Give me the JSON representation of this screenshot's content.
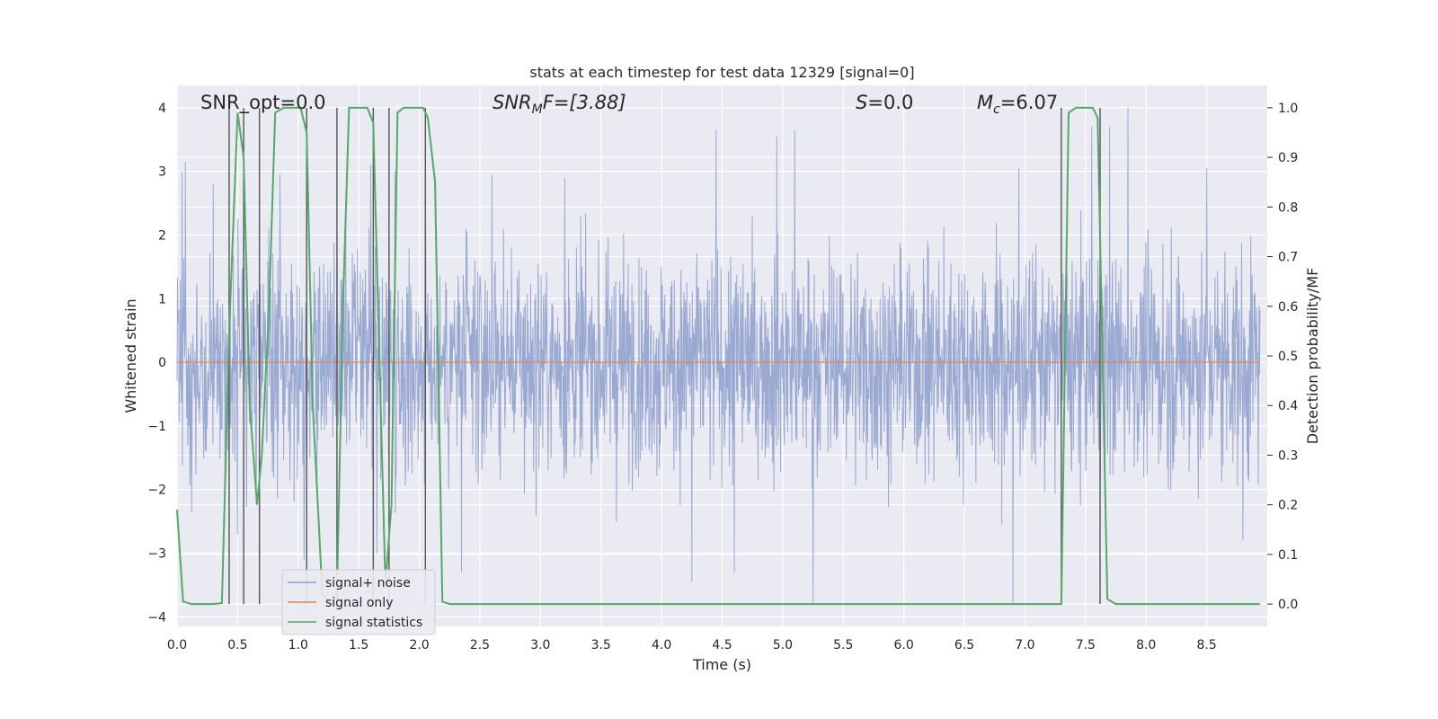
{
  "chart_data": {
    "type": "line",
    "title": "stats at each timestep for test data 12329 [signal=0]",
    "xlabel": "Time (s)",
    "ylabel": "Whitened strain",
    "y2label": "Detection probability/MF",
    "xlim": [
      0,
      9.0
    ],
    "ylim": [
      -4.15,
      4.35
    ],
    "y2lim": [
      -0.045,
      1.045
    ],
    "xticks": [
      0.0,
      0.5,
      1.0,
      1.5,
      2.0,
      2.5,
      3.0,
      3.5,
      4.0,
      4.5,
      5.0,
      5.5,
      6.0,
      6.5,
      7.0,
      7.5,
      8.0,
      8.5
    ],
    "xtick_labels": [
      "0.0",
      "0.5",
      "1.0",
      "1.5",
      "2.0",
      "2.5",
      "3.0",
      "3.5",
      "4.0",
      "4.5",
      "5.0",
      "5.5",
      "6.0",
      "6.5",
      "7.0",
      "7.5",
      "8.0",
      "8.5"
    ],
    "yticks": [
      -4,
      -3,
      -2,
      -1,
      0,
      1,
      2,
      3,
      4
    ],
    "ytick_labels": [
      "−4",
      "−3",
      "−2",
      "−1",
      "0",
      "1",
      "2",
      "3",
      "4"
    ],
    "y2ticks": [
      0.0,
      0.1,
      0.2,
      0.3,
      0.4,
      0.5,
      0.6,
      0.7,
      0.8,
      0.9,
      1.0
    ],
    "y2tick_labels": [
      "0.0",
      "0.1",
      "0.2",
      "0.3",
      "0.4",
      "0.5",
      "0.6",
      "0.7",
      "0.8",
      "0.9",
      "1.0"
    ],
    "grid": true,
    "legend_position": "lower-left",
    "annotations": {
      "snr_opt": "SNR_opt=0.0",
      "snr_mf_main": "SNR",
      "snr_mf_sub": "M",
      "snr_mf_rest": "F=[3.88]",
      "s_main": "S",
      "s_rest": "=0.0",
      "mc_main": "M",
      "mc_sub": "c",
      "mc_rest": "=6.07"
    },
    "colors": {
      "noise": "#8c9ecb",
      "signal_only": "#dd8452",
      "statistics": "#55a868",
      "vlines": "#555555",
      "background": "#eaeaf2",
      "grid": "#ffffff"
    },
    "series": [
      {
        "name": "signal+ noise",
        "description_style": "dense noise band",
        "upper_envelope_approx": [
          2.6,
          2.2
        ],
        "spikes_up": [
          [
            0.04,
            3.0
          ],
          [
            0.07,
            3.15
          ],
          [
            0.3,
            2.8
          ],
          [
            0.5,
            3.0
          ],
          [
            0.85,
            2.95
          ],
          [
            1.05,
            3.4
          ],
          [
            1.6,
            3.1
          ],
          [
            1.8,
            3.0
          ],
          [
            2.05,
            3.05
          ],
          [
            2.6,
            2.95
          ],
          [
            3.2,
            2.9
          ],
          [
            4.45,
            3.65
          ],
          [
            4.95,
            3.55
          ],
          [
            5.1,
            3.65
          ],
          [
            6.95,
            3.05
          ],
          [
            7.55,
            3.7
          ],
          [
            7.7,
            3.7
          ],
          [
            7.85,
            4.0
          ],
          [
            8.5,
            3.05
          ]
        ],
        "spikes_down": [
          [
            0.5,
            -2.7
          ],
          [
            1.05,
            -3.1
          ],
          [
            1.65,
            -3.0
          ],
          [
            2.35,
            -3.3
          ],
          [
            4.25,
            -3.45
          ],
          [
            4.6,
            -3.3
          ],
          [
            5.25,
            -3.8
          ],
          [
            6.9,
            -3.8
          ],
          [
            8.8,
            -2.8
          ]
        ]
      },
      {
        "name": "signal only",
        "values": "zero line at y=0"
      },
      {
        "name": "signal statistics",
        "x": [
          0.0,
          0.05,
          0.12,
          0.2,
          0.3,
          0.37,
          0.43,
          0.5,
          0.55,
          0.6,
          0.66,
          0.7,
          0.76,
          0.81,
          0.88,
          0.95,
          1.02,
          1.07,
          1.12,
          1.2,
          1.27,
          1.32,
          1.37,
          1.42,
          1.47,
          1.52,
          1.57,
          1.62,
          1.67,
          1.72,
          1.77,
          1.82,
          1.87,
          1.92,
          1.97,
          2.03,
          2.07,
          2.13,
          2.19,
          2.25,
          7.3,
          7.36,
          7.42,
          7.5,
          7.56,
          7.6,
          7.68,
          7.75,
          8.94
        ],
        "y": [
          0.19,
          0.005,
          0.0,
          0.0,
          0.0,
          0.002,
          0.55,
          0.99,
          0.9,
          0.4,
          0.2,
          0.3,
          0.6,
          0.99,
          1.0,
          1.0,
          1.0,
          0.95,
          0.4,
          0.02,
          0.0,
          0.02,
          0.6,
          1.0,
          1.0,
          1.0,
          1.0,
          0.97,
          0.5,
          0.04,
          0.2,
          0.99,
          1.0,
          1.0,
          1.0,
          1.0,
          0.98,
          0.85,
          0.005,
          0.0,
          0.0,
          0.99,
          1.0,
          1.0,
          1.0,
          0.98,
          0.01,
          0.0,
          0.0
        ]
      }
    ],
    "vlines_x": [
      0.43,
      0.55,
      0.68,
      1.07,
      1.32,
      1.62,
      1.75,
      2.05,
      7.3,
      7.62
    ]
  }
}
